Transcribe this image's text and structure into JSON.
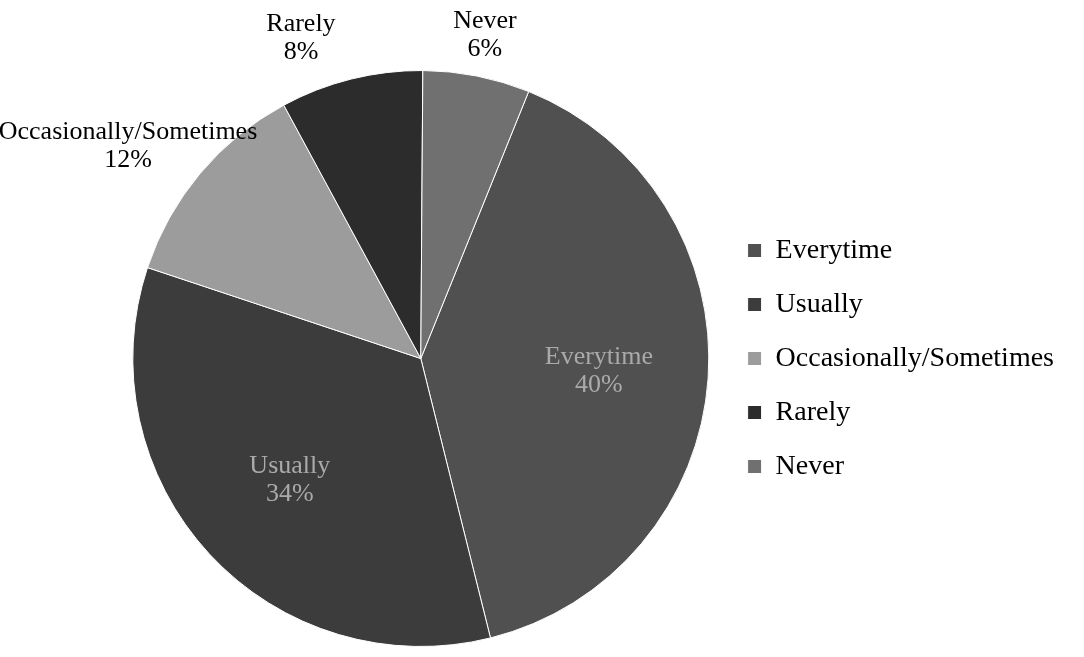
{
  "chart_data": {
    "type": "pie",
    "categories": [
      "Everytime",
      "Usually",
      "Occasionally/Sometimes",
      "Rarely",
      "Never"
    ],
    "values": [
      40,
      34,
      12,
      8,
      6
    ],
    "colors": [
      "#505050",
      "#3c3c3c",
      "#9c9c9c",
      "#2c2c2c",
      "#707070"
    ],
    "value_labels": [
      "40%",
      "34%",
      "12%",
      "8%",
      "6%"
    ],
    "legend": "right"
  }
}
